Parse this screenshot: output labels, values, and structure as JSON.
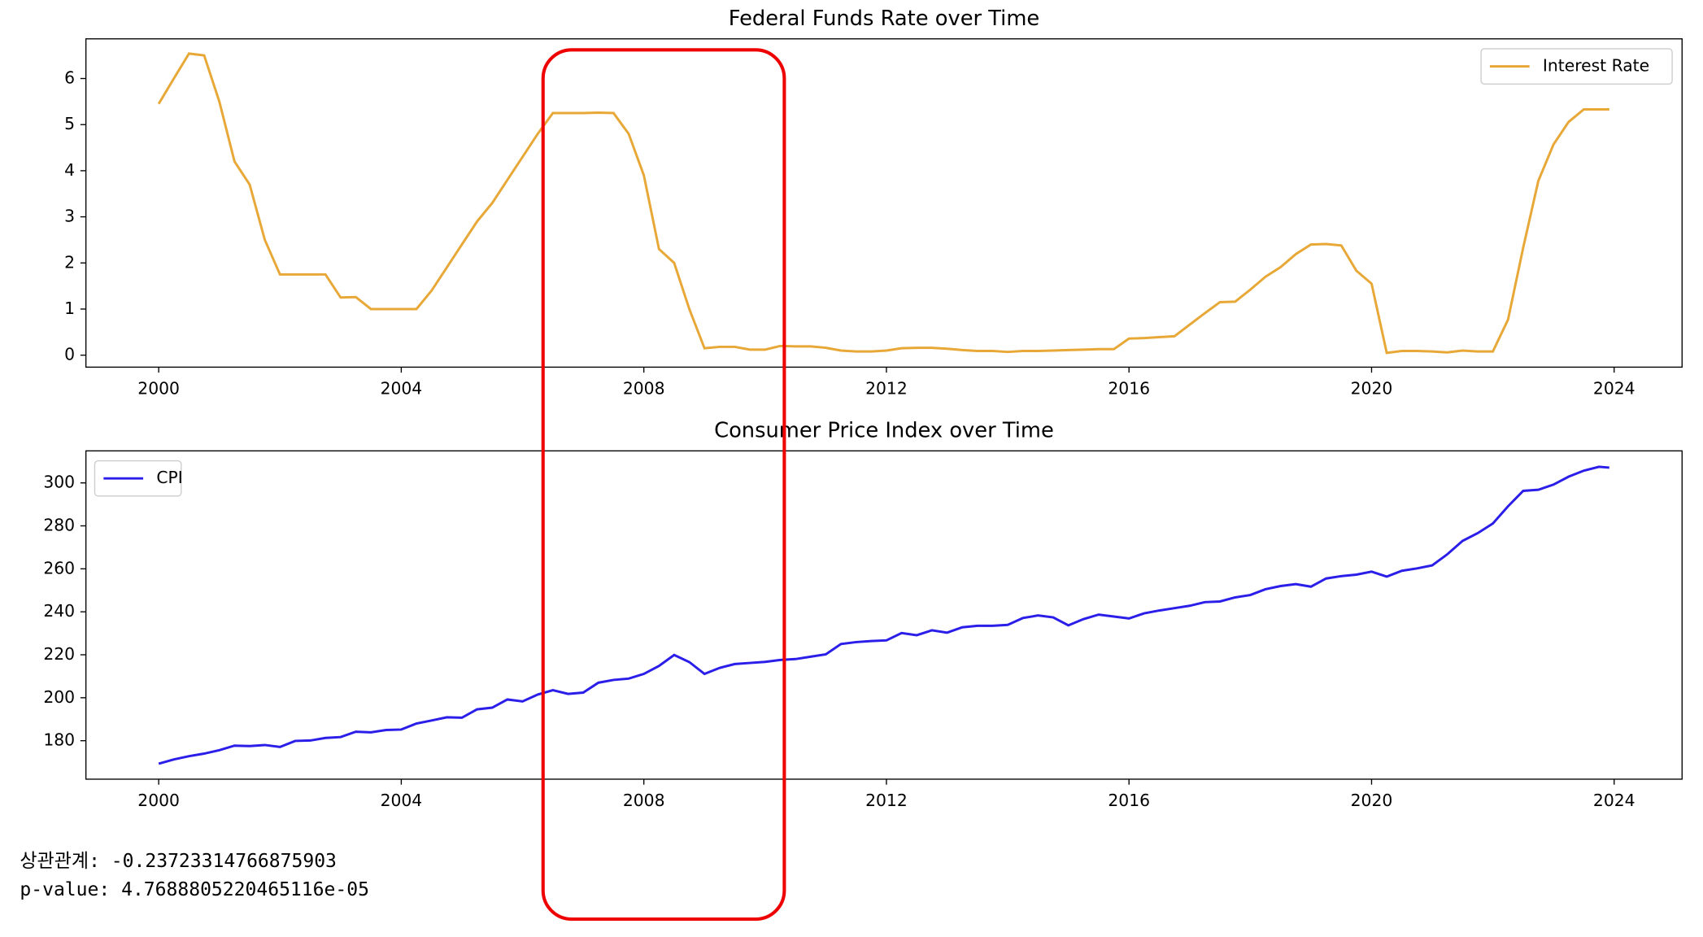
{
  "chart_data": [
    {
      "type": "line",
      "title": "Federal Funds Rate over Time",
      "x": [
        2000.0,
        2000.25,
        2000.5,
        2000.75,
        2001.0,
        2001.25,
        2001.5,
        2001.75,
        2002.0,
        2002.25,
        2002.5,
        2002.75,
        2003.0,
        2003.25,
        2003.5,
        2003.75,
        2004.0,
        2004.25,
        2004.5,
        2004.75,
        2005.0,
        2005.25,
        2005.5,
        2005.75,
        2006.0,
        2006.25,
        2006.5,
        2006.75,
        2007.0,
        2007.25,
        2007.5,
        2007.75,
        2008.0,
        2008.25,
        2008.5,
        2008.75,
        2009.0,
        2009.25,
        2009.5,
        2009.75,
        2010.0,
        2010.25,
        2010.5,
        2010.75,
        2011.0,
        2011.25,
        2011.5,
        2011.75,
        2012.0,
        2012.25,
        2012.5,
        2012.75,
        2013.0,
        2013.25,
        2013.5,
        2013.75,
        2014.0,
        2014.25,
        2014.5,
        2014.75,
        2015.0,
        2015.25,
        2015.5,
        2015.75,
        2016.0,
        2016.25,
        2016.5,
        2016.75,
        2017.0,
        2017.25,
        2017.5,
        2017.75,
        2018.0,
        2018.25,
        2018.5,
        2018.75,
        2019.0,
        2019.25,
        2019.5,
        2019.75,
        2020.0,
        2020.25,
        2020.5,
        2020.75,
        2021.0,
        2021.25,
        2021.5,
        2021.75,
        2022.0,
        2022.25,
        2022.5,
        2022.75,
        2023.0,
        2023.25,
        2023.5,
        2023.75,
        2023.92
      ],
      "series": [
        {
          "name": "Interest Rate",
          "color": "#e8a838",
          "values": [
            5.45,
            6.0,
            6.54,
            6.5,
            5.5,
            4.2,
            3.7,
            2.5,
            1.75,
            1.75,
            1.75,
            1.75,
            1.25,
            1.26,
            1.0,
            1.0,
            1.0,
            1.0,
            1.4,
            1.9,
            2.4,
            2.9,
            3.3,
            3.8,
            4.3,
            4.8,
            5.25,
            5.25,
            5.25,
            5.26,
            5.25,
            4.8,
            3.9,
            2.3,
            2.0,
            1.0,
            0.15,
            0.18,
            0.18,
            0.12,
            0.12,
            0.2,
            0.19,
            0.19,
            0.16,
            0.1,
            0.08,
            0.08,
            0.1,
            0.15,
            0.16,
            0.16,
            0.14,
            0.11,
            0.09,
            0.09,
            0.07,
            0.09,
            0.09,
            0.1,
            0.11,
            0.12,
            0.13,
            0.13,
            0.36,
            0.37,
            0.39,
            0.41,
            0.66,
            0.91,
            1.15,
            1.16,
            1.42,
            1.7,
            1.91,
            2.19,
            2.4,
            2.41,
            2.38,
            1.83,
            1.55,
            0.05,
            0.09,
            0.09,
            0.08,
            0.06,
            0.1,
            0.08,
            0.08,
            0.77,
            2.33,
            3.78,
            4.57,
            5.06,
            5.33,
            5.33,
            5.33
          ]
        }
      ],
      "xlim": [
        1998.8,
        2025.12
      ],
      "xticks": [
        2000,
        2004,
        2008,
        2012,
        2016,
        2020,
        2024
      ],
      "ylim": [
        -0.26,
        6.86
      ],
      "yticks": [
        0,
        1,
        2,
        3,
        4,
        5,
        6
      ],
      "legend": "upper right"
    },
    {
      "type": "line",
      "title": "Consumer Price Index over Time",
      "x": [
        2000.0,
        2000.25,
        2000.5,
        2000.75,
        2001.0,
        2001.25,
        2001.5,
        2001.75,
        2002.0,
        2002.25,
        2002.5,
        2002.75,
        2003.0,
        2003.25,
        2003.5,
        2003.75,
        2004.0,
        2004.25,
        2004.5,
        2004.75,
        2005.0,
        2005.25,
        2005.5,
        2005.75,
        2006.0,
        2006.25,
        2006.5,
        2006.75,
        2007.0,
        2007.25,
        2007.5,
        2007.75,
        2008.0,
        2008.25,
        2008.5,
        2008.75,
        2009.0,
        2009.25,
        2009.5,
        2009.75,
        2010.0,
        2010.25,
        2010.5,
        2010.75,
        2011.0,
        2011.25,
        2011.5,
        2011.75,
        2012.0,
        2012.25,
        2012.5,
        2012.75,
        2013.0,
        2013.25,
        2013.5,
        2013.75,
        2014.0,
        2014.25,
        2014.5,
        2014.75,
        2015.0,
        2015.25,
        2015.5,
        2015.75,
        2016.0,
        2016.25,
        2016.5,
        2016.75,
        2017.0,
        2017.25,
        2017.5,
        2017.75,
        2018.0,
        2018.25,
        2018.5,
        2018.75,
        2019.0,
        2019.25,
        2019.5,
        2019.75,
        2020.0,
        2020.25,
        2020.5,
        2020.75,
        2021.0,
        2021.25,
        2021.5,
        2021.75,
        2022.0,
        2022.25,
        2022.5,
        2022.75,
        2023.0,
        2023.25,
        2023.5,
        2023.75,
        2023.92
      ],
      "series": [
        {
          "name": "CPI",
          "color": "#2a1ee8",
          "values": [
            169.3,
            171.3,
            172.8,
            174.0,
            175.6,
            177.7,
            177.5,
            178.0,
            177.1,
            179.9,
            180.1,
            181.3,
            181.7,
            184.2,
            183.9,
            185.0,
            185.2,
            188.0,
            189.4,
            190.9,
            190.7,
            194.6,
            195.4,
            199.2,
            198.3,
            201.5,
            203.5,
            201.8,
            202.4,
            207.0,
            208.3,
            208.9,
            211.1,
            214.8,
            219.9,
            216.6,
            211.1,
            213.9,
            215.7,
            216.2,
            216.7,
            217.6,
            218.0,
            219.1,
            220.2,
            225.0,
            225.9,
            226.4,
            226.7,
            230.1,
            229.1,
            231.4,
            230.3,
            232.8,
            233.5,
            233.5,
            233.9,
            237.1,
            238.3,
            237.4,
            233.7,
            236.6,
            238.7,
            237.8,
            236.9,
            239.3,
            240.6,
            241.7,
            242.8,
            244.5,
            244.8,
            246.7,
            247.8,
            250.5,
            252.0,
            252.9,
            251.7,
            255.5,
            256.6,
            257.3,
            258.7,
            256.4,
            259.1,
            260.2,
            261.6,
            266.8,
            273.0,
            276.6,
            281.1,
            289.1,
            296.3,
            296.8,
            299.2,
            302.9,
            305.7,
            307.5,
            307.1
          ]
        }
      ],
      "xlim": [
        1998.8,
        2025.12
      ],
      "xticks": [
        2000,
        2004,
        2008,
        2012,
        2016,
        2020,
        2024
      ],
      "ylim": [
        162.1,
        314.9
      ],
      "yticks": [
        180,
        200,
        220,
        240,
        260,
        280,
        300
      ],
      "legend": "upper left"
    }
  ],
  "text_output": [
    "상관관계: -0.23723314766875903",
    "p-value: 4.7688805220465116e-05"
  ]
}
